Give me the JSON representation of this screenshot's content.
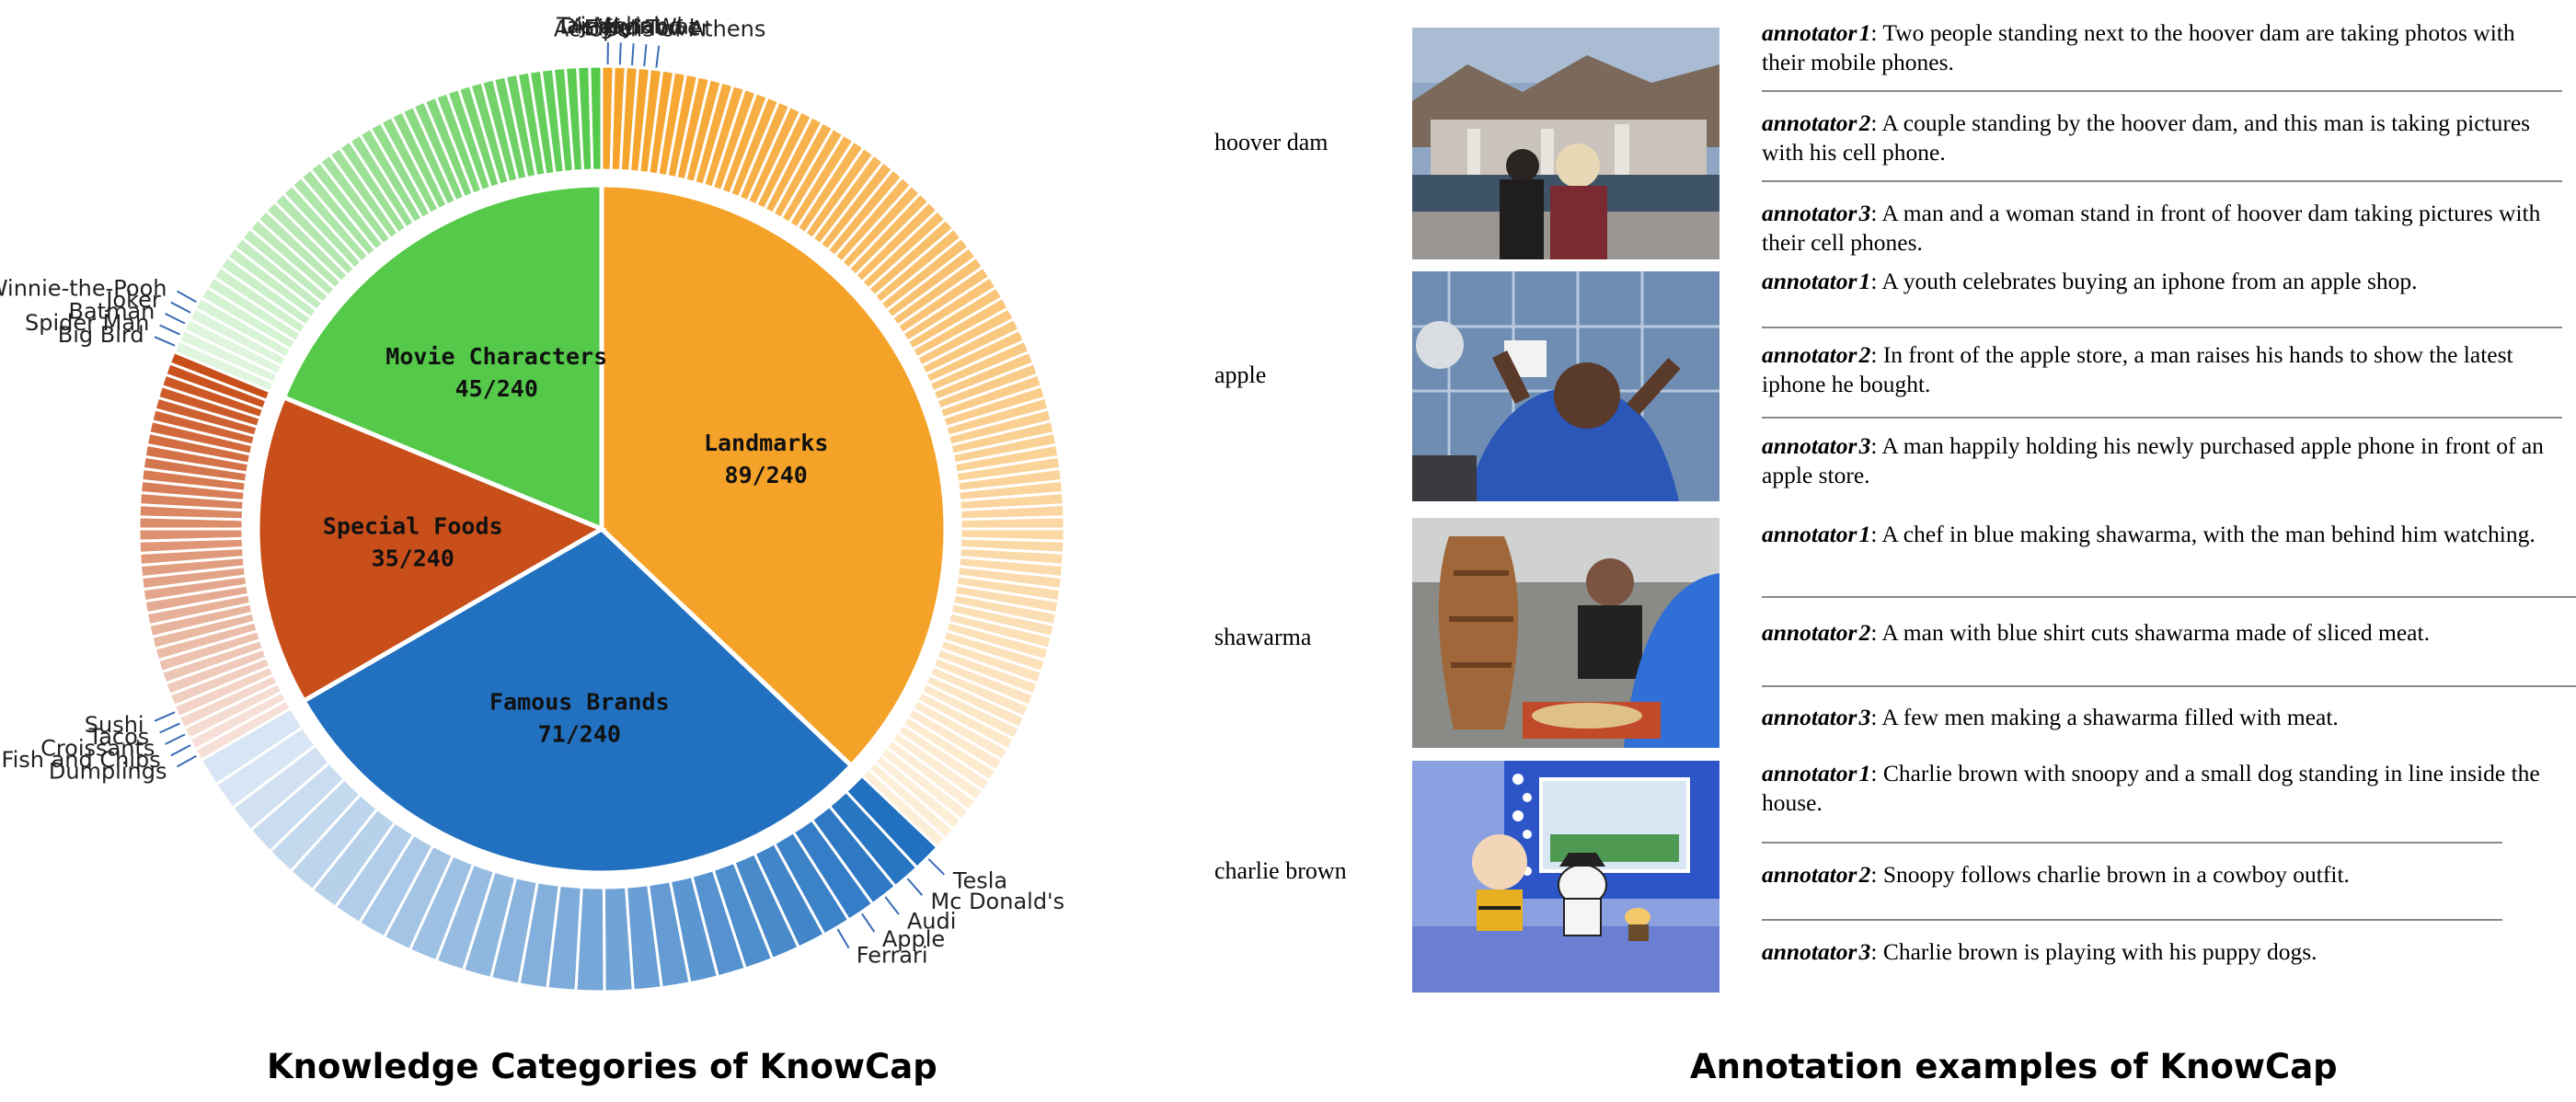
{
  "chart_data": {
    "type": "pie",
    "title": "Knowledge Categories of KnowCap",
    "total": 240,
    "categories": [
      {
        "name": "Landmarks",
        "count": 89,
        "label": "89/240",
        "color": "#f5a228",
        "subcount": 89,
        "named_items": [
          "Taj Mahal",
          "Disneyland",
          "Angkor Wat",
          "Eiffel Tower",
          "Acropolis of Athens"
        ]
      },
      {
        "name": "Famous Brands",
        "count": 71,
        "label": "71/240",
        "color": "#2271c0",
        "subcount": 30,
        "named_items": [
          "Tesla",
          "Mc Donald's",
          "Audi",
          "Apple",
          "Ferrari"
        ]
      },
      {
        "name": "Special Foods",
        "count": 35,
        "label": "35/240",
        "color": "#c94f1a",
        "subcount": 35,
        "named_items": [
          "Dumplings",
          "Fish and Chips",
          "Croissants",
          "Tacos",
          "Sushi"
        ]
      },
      {
        "name": "Movie Characters",
        "count": 45,
        "label": "45/240",
        "color": "#55c94a",
        "subcount": 45,
        "named_items": [
          "Big Bird",
          "Spider Man",
          "Batman",
          "Joker",
          "Winnie-the-Pooh"
        ]
      }
    ]
  },
  "right_title": "Annotation examples of KnowCap",
  "examples": [
    {
      "concept": "hoover dam",
      "annotations": [
        {
          "who": "annotator",
          "num": "1",
          "text": ": Two people standing next to the hoover dam are taking photos with their mobile phones."
        },
        {
          "who": "annotator",
          "num": "2",
          "text": ": A couple standing by the hoover dam, and this man is taking pictures with his cell phone."
        },
        {
          "who": "annotator",
          "num": "3",
          "text": ": A man and a woman stand in front of hoover dam taking pictures with their cell phones."
        }
      ]
    },
    {
      "concept": "apple",
      "annotations": [
        {
          "who": "annotator",
          "num": "1",
          "text": ": A youth celebrates buying an iphone from an apple shop."
        },
        {
          "who": "annotator",
          "num": "2",
          "text": ": In front of the apple store, a man raises his hands to show the latest iphone he bought."
        },
        {
          "who": "annotator",
          "num": "3",
          "text": ": A man happily holding his newly purchased apple phone in front of an apple store."
        }
      ]
    },
    {
      "concept": "shawarma",
      "annotations": [
        {
          "who": "annotator",
          "num": "1",
          "text": ": A chef in blue making shawarma, with the man behind him watching."
        },
        {
          "who": "annotator",
          "num": "2",
          "text": ": A man with blue shirt cuts shawarma made of sliced meat."
        },
        {
          "who": "annotator",
          "num": "3",
          "text": ": A few men making a shawarma filled with meat."
        }
      ]
    },
    {
      "concept": "charlie brown",
      "annotations": [
        {
          "who": "annotator",
          "num": "1",
          "text": ": Charlie brown with snoopy and a small dog standing in line inside the house."
        },
        {
          "who": "annotator",
          "num": "2",
          "text": ": Snoopy follows charlie brown in a cowboy outfit."
        },
        {
          "who": "annotator",
          "num": "3",
          "text": ": Charlie brown is playing with his puppy dogs."
        }
      ]
    }
  ]
}
